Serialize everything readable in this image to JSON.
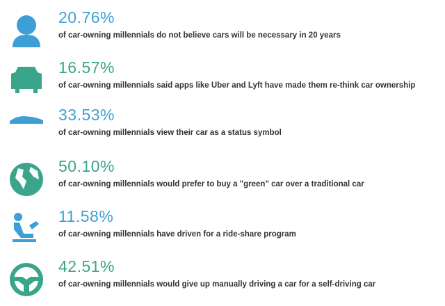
{
  "items": [
    {
      "stat": "20.76%",
      "text": "of car-owning millennials do not believe cars will be necessary in 20 years"
    },
    {
      "stat": "16.57%",
      "text": "of car-owning millennials said apps like Uber and Lyft have made them re-think car ownership"
    },
    {
      "stat": "33.53%",
      "text": "of car-owning millennials view their car as a status symbol"
    },
    {
      "stat": "50.10%",
      "text": "of car-owning millennials would prefer to buy a \"green\" car over a traditional car"
    },
    {
      "stat": "11.58%",
      "text": "of car-owning millennials have driven for a ride-share program"
    },
    {
      "stat": "42.51%",
      "text": "of car-owning millennials would give up manually driving a car for a self-driving car"
    }
  ]
}
